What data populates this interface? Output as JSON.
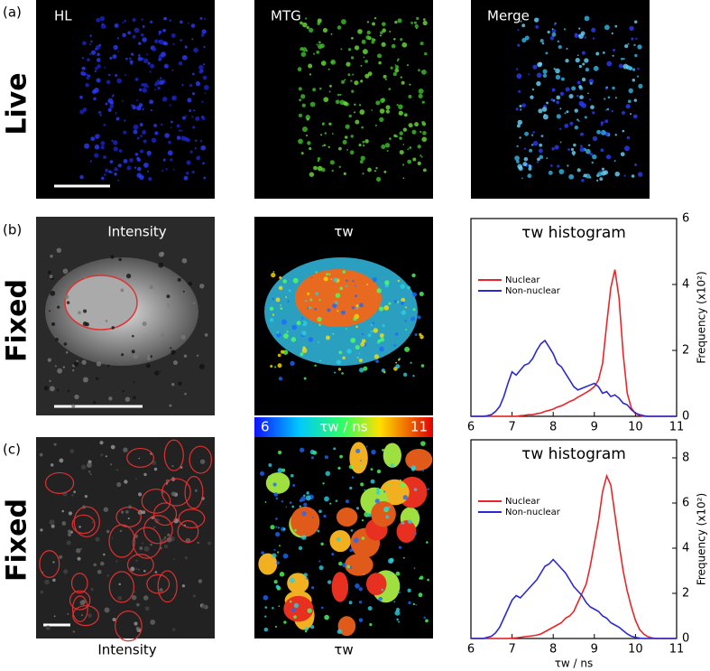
{
  "figure": {
    "panel_labels": [
      "(a)",
      "(b)",
      "(c)"
    ],
    "row_labels": [
      "Live",
      "Fixed",
      "Fixed"
    ],
    "panel_a_titles": [
      "HL",
      "MTG",
      "Merge"
    ],
    "panel_b_titles": [
      "Intensity",
      "τw"
    ],
    "panel_c_captions": [
      "Intensity",
      "τw"
    ],
    "colorbar": {
      "min": 6,
      "max": 11,
      "label": "τw / ns"
    }
  },
  "chart_data": [
    {
      "type": "line",
      "title": "τw histogram",
      "ylabel": "Frequency (x10²)",
      "xlim": [
        6,
        11
      ],
      "xticks": [
        6,
        7,
        8,
        9,
        10,
        11
      ],
      "ylim": [
        0,
        6
      ],
      "yticks": [
        0,
        2,
        4,
        6
      ],
      "legend": "upper left",
      "x": [
        6.0,
        6.1,
        6.2,
        6.3,
        6.4,
        6.5,
        6.6,
        6.7,
        6.8,
        6.9,
        7.0,
        7.1,
        7.2,
        7.3,
        7.4,
        7.5,
        7.6,
        7.7,
        7.8,
        7.9,
        8.0,
        8.1,
        8.2,
        8.3,
        8.4,
        8.5,
        8.6,
        8.7,
        8.8,
        8.9,
        9.0,
        9.1,
        9.2,
        9.3,
        9.4,
        9.5,
        9.6,
        9.7,
        9.8,
        9.9,
        10.0,
        10.1,
        10.2,
        10.3,
        10.4,
        10.5,
        10.6,
        10.7,
        10.8,
        10.9,
        11.0
      ],
      "series": [
        {
          "name": "Nuclear",
          "color": "#e8262a",
          "values": [
            0,
            0,
            0,
            0,
            0,
            0,
            0,
            0,
            0,
            0,
            0,
            0,
            0.02,
            0.03,
            0.05,
            0.05,
            0.08,
            0.1,
            0.15,
            0.18,
            0.22,
            0.28,
            0.32,
            0.38,
            0.45,
            0.5,
            0.58,
            0.65,
            0.72,
            0.8,
            0.9,
            1.1,
            1.6,
            2.8,
            3.9,
            4.45,
            3.6,
            1.9,
            0.7,
            0.25,
            0.08,
            0.03,
            0,
            0,
            0,
            0,
            0,
            0,
            0,
            0,
            0
          ]
        },
        {
          "name": "Non-nuclear",
          "color": "#2a2ad0",
          "values": [
            0,
            0,
            0,
            0,
            0.02,
            0.05,
            0.15,
            0.3,
            0.6,
            1.0,
            1.35,
            1.25,
            1.4,
            1.55,
            1.6,
            1.75,
            2.0,
            2.2,
            2.3,
            2.1,
            1.9,
            1.6,
            1.5,
            1.3,
            1.1,
            0.9,
            0.8,
            0.85,
            0.9,
            0.95,
            1.0,
            0.9,
            0.7,
            0.75,
            0.6,
            0.65,
            0.55,
            0.4,
            0.35,
            0.2,
            0.1,
            0.05,
            0.02,
            0,
            0,
            0,
            0,
            0,
            0,
            0,
            0
          ]
        }
      ]
    },
    {
      "type": "line",
      "title": "τw histogram",
      "ylabel": "Frequency (x10²)",
      "xlabel": "τw / ns",
      "xlim": [
        6,
        11
      ],
      "xticks": [
        6,
        7,
        8,
        9,
        10,
        11
      ],
      "ylim": [
        0,
        8.8
      ],
      "yticks": [
        0,
        2,
        4,
        6,
        8
      ],
      "legend": "upper left",
      "x": [
        6.0,
        6.1,
        6.2,
        6.3,
        6.4,
        6.5,
        6.6,
        6.7,
        6.8,
        6.9,
        7.0,
        7.1,
        7.2,
        7.3,
        7.4,
        7.5,
        7.6,
        7.7,
        7.8,
        7.9,
        8.0,
        8.1,
        8.2,
        8.3,
        8.4,
        8.5,
        8.6,
        8.7,
        8.8,
        8.9,
        9.0,
        9.1,
        9.2,
        9.3,
        9.4,
        9.5,
        9.6,
        9.7,
        9.8,
        9.9,
        10.0,
        10.1,
        10.2,
        10.3,
        10.4,
        10.5,
        10.6,
        10.7,
        10.8,
        10.9,
        11.0
      ],
      "series": [
        {
          "name": "Nuclear",
          "color": "#e8262a",
          "values": [
            0,
            0,
            0,
            0,
            0,
            0,
            0,
            0,
            0,
            0,
            0.02,
            0.03,
            0.05,
            0.08,
            0.1,
            0.12,
            0.15,
            0.2,
            0.3,
            0.4,
            0.5,
            0.6,
            0.7,
            0.9,
            1.0,
            1.2,
            1.6,
            2.0,
            2.4,
            3.2,
            4.2,
            5.2,
            6.5,
            7.2,
            6.8,
            5.5,
            4.2,
            3.0,
            2.1,
            1.4,
            0.8,
            0.4,
            0.2,
            0.08,
            0.03,
            0,
            0,
            0,
            0,
            0,
            0
          ]
        },
        {
          "name": "Non-nuclear",
          "color": "#2a2ad0",
          "values": [
            0,
            0,
            0,
            0,
            0.05,
            0.1,
            0.25,
            0.5,
            0.9,
            1.3,
            1.7,
            1.9,
            1.8,
            2.0,
            2.2,
            2.4,
            2.6,
            2.9,
            3.2,
            3.3,
            3.5,
            3.3,
            3.1,
            2.9,
            2.6,
            2.3,
            2.1,
            1.9,
            1.6,
            1.4,
            1.3,
            1.2,
            1.0,
            0.9,
            0.7,
            0.6,
            0.5,
            0.35,
            0.2,
            0.1,
            0.05,
            0.02,
            0,
            0,
            0,
            0,
            0,
            0,
            0,
            0,
            0
          ]
        }
      ]
    }
  ]
}
